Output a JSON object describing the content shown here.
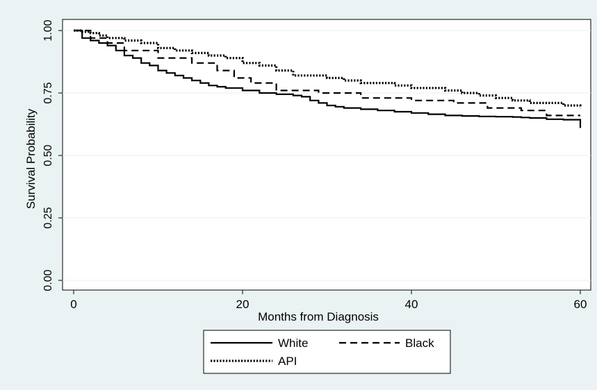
{
  "chart_data": {
    "type": "line",
    "title": "",
    "xlabel": "Months from Diagnosis",
    "ylabel": "Survival Probability",
    "xlim": [
      0,
      60
    ],
    "ylim": [
      0,
      1
    ],
    "xticks": [
      "0",
      "20",
      "40",
      "60"
    ],
    "yticks": [
      "0.00",
      "0.25",
      "0.50",
      "0.75",
      "1.00"
    ],
    "grid": true,
    "legend_position": "bottom",
    "style": "step",
    "series": [
      {
        "name": "White",
        "line_style": "solid",
        "x": [
          0,
          1,
          2,
          3,
          4,
          5,
          6,
          7,
          8,
          9,
          10,
          11,
          12,
          13,
          14,
          15,
          16,
          17,
          18,
          20,
          22,
          24,
          26,
          27,
          28,
          29,
          30,
          31,
          32,
          34,
          36,
          38,
          40,
          42,
          44,
          46,
          48,
          50,
          52,
          53,
          54,
          56,
          58,
          60
        ],
        "y": [
          1.0,
          0.97,
          0.96,
          0.95,
          0.94,
          0.92,
          0.9,
          0.89,
          0.87,
          0.86,
          0.84,
          0.83,
          0.82,
          0.81,
          0.8,
          0.79,
          0.78,
          0.775,
          0.77,
          0.76,
          0.75,
          0.745,
          0.74,
          0.735,
          0.72,
          0.71,
          0.7,
          0.695,
          0.69,
          0.685,
          0.68,
          0.675,
          0.67,
          0.665,
          0.66,
          0.658,
          0.656,
          0.655,
          0.654,
          0.652,
          0.65,
          0.645,
          0.643,
          0.61
        ]
      },
      {
        "name": "Black",
        "line_style": "dashed",
        "x": [
          0,
          2,
          4,
          6,
          10,
          14,
          17,
          19,
          21,
          24,
          26,
          29,
          31,
          34,
          35,
          40,
          45,
          49,
          53,
          56,
          60
        ],
        "y": [
          1.0,
          0.97,
          0.95,
          0.92,
          0.89,
          0.87,
          0.84,
          0.81,
          0.79,
          0.76,
          0.76,
          0.75,
          0.75,
          0.73,
          0.73,
          0.72,
          0.71,
          0.69,
          0.68,
          0.66,
          0.66
        ]
      },
      {
        "name": "API",
        "line_style": "dotted",
        "x": [
          0,
          1,
          2,
          3,
          4,
          6,
          8,
          10,
          12,
          14,
          16,
          18,
          20,
          22,
          24,
          26,
          28,
          30,
          32,
          34,
          36,
          38,
          40,
          42,
          44,
          46,
          48,
          50,
          52,
          54,
          56,
          58,
          60
        ],
        "y": [
          1.0,
          0.995,
          0.99,
          0.98,
          0.97,
          0.96,
          0.95,
          0.93,
          0.92,
          0.91,
          0.9,
          0.89,
          0.87,
          0.86,
          0.84,
          0.82,
          0.82,
          0.81,
          0.8,
          0.79,
          0.79,
          0.78,
          0.77,
          0.77,
          0.76,
          0.75,
          0.74,
          0.73,
          0.72,
          0.71,
          0.71,
          0.7,
          0.69
        ]
      }
    ]
  }
}
